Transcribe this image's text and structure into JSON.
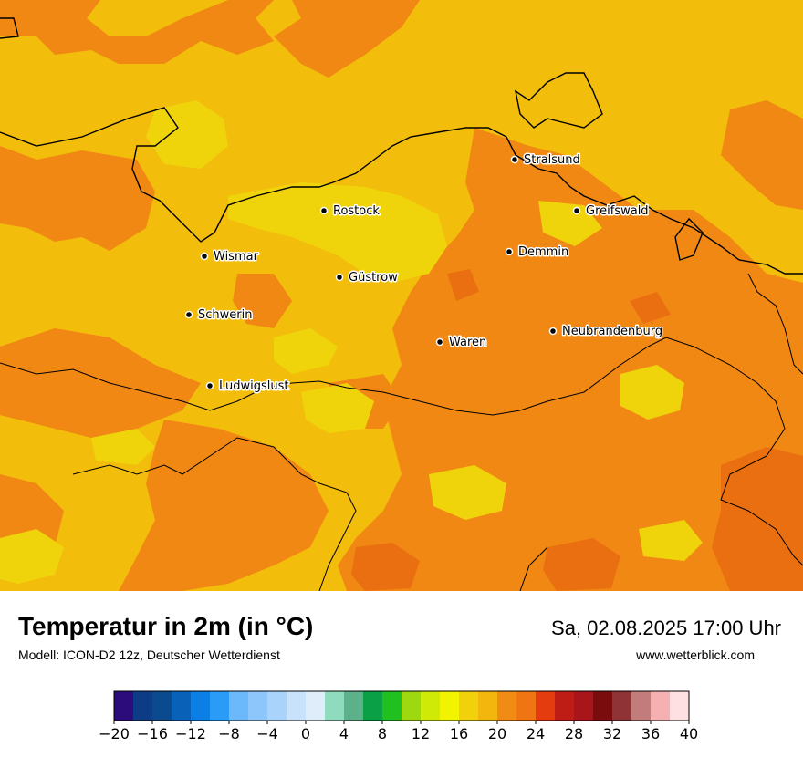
{
  "map": {
    "colors": {
      "base": "#f3bd0c",
      "orange": "#f08813",
      "light": "#efd40b",
      "dark": "#ea6f10",
      "coast": "#000000"
    },
    "cities": [
      {
        "name": "Stralsund"
      },
      {
        "name": "Rostock"
      },
      {
        "name": "Greifswald"
      },
      {
        "name": "Wismar"
      },
      {
        "name": "Demmin"
      },
      {
        "name": "Güstrow"
      },
      {
        "name": "Schwerin"
      },
      {
        "name": "Neubrandenburg"
      },
      {
        "name": "Waren"
      },
      {
        "name": "Ludwigslust"
      }
    ]
  },
  "footer": {
    "title": "Temperatur in 2m (in °C)",
    "subtitle": "Modell: ICON-D2 12z, Deutscher Wetterdienst",
    "valid_time": "Sa, 02.08.2025 17:00 Uhr",
    "website": "www.wetterblick.com"
  },
  "colorbar": {
    "min": -20,
    "max": 40,
    "step": 2,
    "tick_labels": [
      "−20",
      "−16",
      "−12",
      "−8",
      "−4",
      "0",
      "4",
      "8",
      "12",
      "16",
      "20",
      "24",
      "28",
      "32",
      "36",
      "40"
    ],
    "colors": [
      "#2c0c7b",
      "#0d3c86",
      "#0b4a8c",
      "#0a62b8",
      "#0c7fe6",
      "#2a9bf7",
      "#6bb9fb",
      "#8cc6fb",
      "#a9d3fb",
      "#c9e2fb",
      "#dfedfb",
      "#8fdbbd",
      "#5cb08a",
      "#0aa046",
      "#1fc01f",
      "#9ed80f",
      "#cfea07",
      "#f1f300",
      "#f0d10b",
      "#f2b60d",
      "#f08b13",
      "#ef7412",
      "#e43c0e",
      "#be1d15",
      "#a8151b",
      "#7a0c0d",
      "#8f3336",
      "#c27c7c",
      "#f5b1b1",
      "#ffe0e2"
    ]
  }
}
